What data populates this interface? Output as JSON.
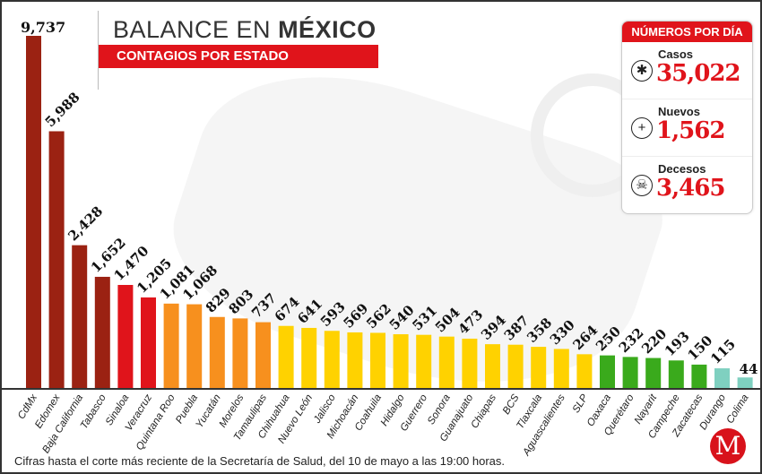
{
  "header": {
    "title_light": "BALANCE EN ",
    "title_bold": "MÉXICO",
    "subtitle": "CONTAGIOS POR ESTADO"
  },
  "panel": {
    "title": "NÚMEROS POR DÍA",
    "stats": [
      {
        "label": "Casos",
        "value": "35,022",
        "icon": "virus-icon"
      },
      {
        "label": "Nuevos",
        "value": "1,562",
        "icon": "plus-icon"
      },
      {
        "label": "Decesos",
        "value": "3,465",
        "icon": "skull-icon"
      }
    ]
  },
  "footnote": "Cifras hasta el corte más reciente de la Secretaría de Salud, del 10 de mayo a las 19:00 horas.",
  "logo": "M",
  "chart_data": {
    "type": "bar",
    "title": "CONTAGIOS POR ESTADO",
    "categories": [
      "CdMx",
      "Edomex",
      "Baja California",
      "Tabasco",
      "Sinaloa",
      "Veracruz",
      "Quintana Roo",
      "Puebla",
      "Yucatán",
      "Morelos",
      "Tamaulipas",
      "Chihuahua",
      "Nuevo León",
      "Jalisco",
      "Michoacán",
      "Coahuila",
      "Hidalgo",
      "Guerrero",
      "Sonora",
      "Guanajuato",
      "Chiapas",
      "BCS",
      "Tlaxcala",
      "Aguascalientes",
      "SLP",
      "Oaxaca",
      "Querétaro",
      "Nayarit",
      "Campeche",
      "Zacatecas",
      "Durango",
      "Colima"
    ],
    "values": [
      9737,
      5988,
      2428,
      1652,
      1470,
      1205,
      1081,
      1068,
      829,
      803,
      737,
      674,
      641,
      593,
      569,
      562,
      540,
      531,
      504,
      473,
      394,
      387,
      358,
      330,
      264,
      250,
      232,
      220,
      193,
      150,
      115,
      44
    ],
    "labels": [
      "9,737",
      "5,988",
      "2,428",
      "1,652",
      "1,470",
      "1,205",
      "1,081",
      "1,068",
      "829",
      "803",
      "737",
      "674",
      "641",
      "593",
      "569",
      "562",
      "540",
      "531",
      "504",
      "473",
      "394",
      "387",
      "358",
      "330",
      "264",
      "250",
      "232",
      "220",
      "193",
      "150",
      "115",
      "44"
    ],
    "colors": [
      "#9b2212",
      "#9b2212",
      "#9b2212",
      "#9b2212",
      "#e0141b",
      "#e0141b",
      "#f7901e",
      "#f7901e",
      "#f7901e",
      "#f7901e",
      "#f7901e",
      "#ffd200",
      "#ffd200",
      "#ffd200",
      "#ffd200",
      "#ffd200",
      "#ffd200",
      "#ffd200",
      "#ffd200",
      "#ffd200",
      "#ffd200",
      "#ffd200",
      "#ffd200",
      "#ffd200",
      "#ffd200",
      "#3aaa1c",
      "#3aaa1c",
      "#3aaa1c",
      "#3aaa1c",
      "#3aaa1c",
      "#7fd0c0",
      "#7fd0c0"
    ],
    "xlabel": "",
    "ylabel": ""
  }
}
